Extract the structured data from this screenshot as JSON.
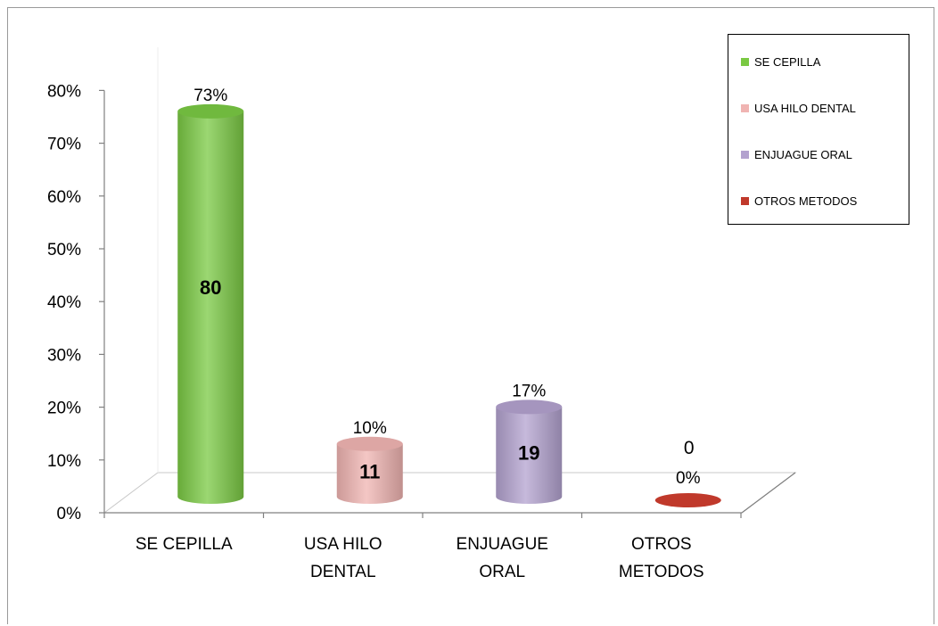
{
  "chart_data": {
    "type": "bar",
    "style": "3d-cylinder",
    "categories": [
      "SE CEPILLA",
      "USA HILO DENTAL",
      "ENJUAGUE ORAL",
      "OTROS METODOS"
    ],
    "category_lines": [
      [
        "SE CEPILLA"
      ],
      [
        "USA HILO",
        "DENTAL"
      ],
      [
        "ENJUAGUE",
        "ORAL"
      ],
      [
        "OTROS",
        "METODOS"
      ]
    ],
    "percent_values": [
      73,
      10,
      17,
      0
    ],
    "percent_labels": [
      "73%",
      "10%",
      "17%",
      "0%"
    ],
    "count_labels": [
      "80",
      "11",
      "19",
      "0"
    ],
    "colors": [
      "#7ac943",
      "#f0b4b2",
      "#b3a2cf",
      "#c0392b"
    ],
    "yticks": [
      "0%",
      "10%",
      "20%",
      "30%",
      "40%",
      "50%",
      "60%",
      "70%",
      "80%"
    ],
    "ylim": [
      0,
      80
    ],
    "grid": false,
    "legend": {
      "position": "top-right",
      "items": [
        "SE CEPILLA",
        "USA HILO DENTAL",
        "ENJUAGUE ORAL",
        "OTROS METODOS"
      ]
    }
  }
}
